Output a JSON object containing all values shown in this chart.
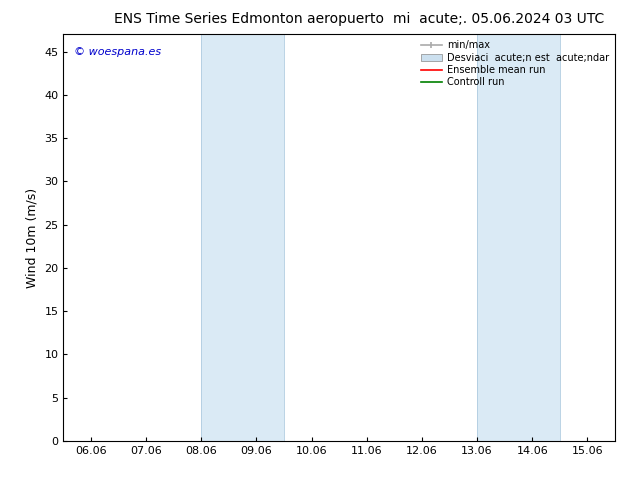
{
  "title_left": "ENS Time Series Edmonton aeropuerto",
  "title_right": "mi  acute;. 05.06.2024 03 UTC",
  "ylabel": "Wind 10m (m/s)",
  "ylim": [
    0,
    47
  ],
  "yticks": [
    0,
    5,
    10,
    15,
    20,
    25,
    30,
    35,
    40,
    45
  ],
  "xtick_labels": [
    "06.06",
    "07.06",
    "08.06",
    "09.06",
    "10.06",
    "11.06",
    "12.06",
    "13.06",
    "14.06",
    "15.06"
  ],
  "xmin": 0,
  "xmax": 9,
  "shaded_regions": [
    {
      "xmin": 2.0,
      "xmax": 3.5,
      "color": "#daeaf5"
    },
    {
      "xmin": 7.0,
      "xmax": 8.5,
      "color": "#daeaf5"
    }
  ],
  "watermark_text": "© woespana.es",
  "watermark_color": "#0000cc",
  "background_color": "#ffffff",
  "title_fontsize": 10,
  "axis_fontsize": 9,
  "tick_fontsize": 8,
  "legend_color_minmax": "#aaaaaa",
  "legend_color_std": "#cce0ef",
  "legend_color_ensemble": "red",
  "legend_color_control": "green"
}
